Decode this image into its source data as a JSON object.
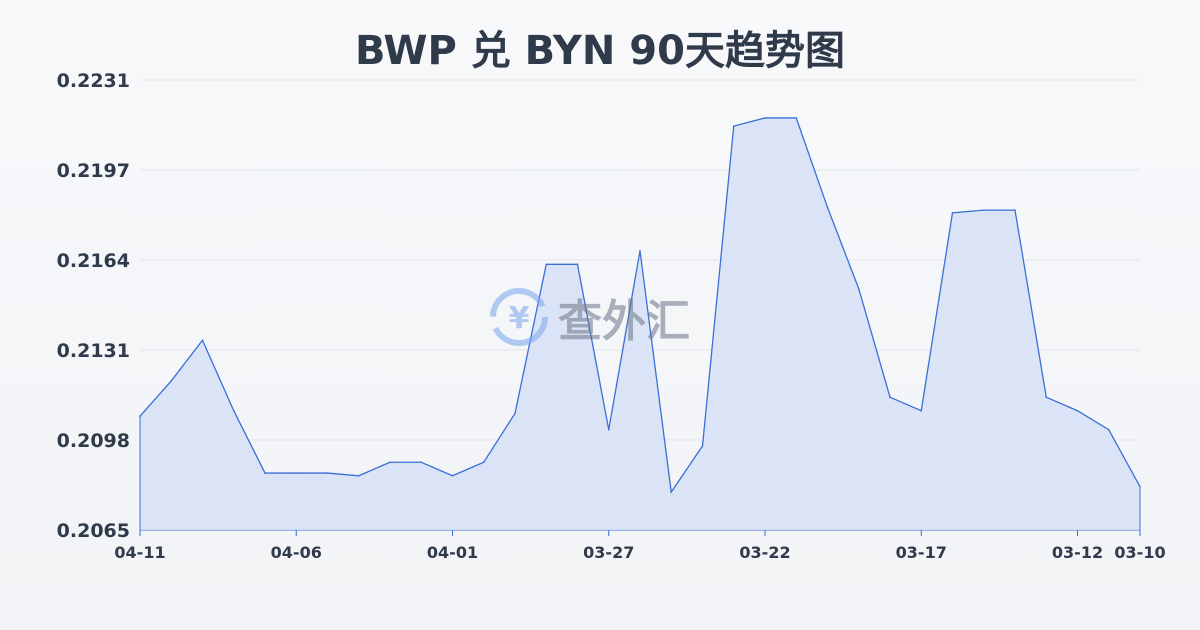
{
  "chart_data": {
    "type": "area",
    "title": "BWP 兑 BYN 90天趋势图",
    "xlabel": "",
    "ylabel": "",
    "ylim": [
      0.2065,
      0.2231
    ],
    "yticks": [
      "0.2231",
      "0.2197",
      "0.2164",
      "0.2131",
      "0.2098",
      "0.2065"
    ],
    "xtick_labels": [
      "04-11",
      "04-06",
      "04-01",
      "03-27",
      "03-22",
      "03-17",
      "03-12",
      "03-10"
    ],
    "x": [
      "04-11",
      "04-10",
      "04-09",
      "04-08",
      "04-07",
      "04-06",
      "04-05",
      "04-04",
      "04-03",
      "04-02",
      "04-01",
      "03-31",
      "03-30",
      "03-29",
      "03-28",
      "03-27",
      "03-26",
      "03-25",
      "03-24",
      "03-23",
      "03-22",
      "03-21",
      "03-20",
      "03-19",
      "03-18",
      "03-17",
      "03-16",
      "03-15",
      "03-14",
      "03-13",
      "03-12",
      "03-11",
      "03-10"
    ],
    "values": [
      0.2107,
      0.212,
      0.2135,
      0.2109,
      0.2086,
      0.2086,
      0.2086,
      0.2085,
      0.209,
      0.209,
      0.2085,
      0.209,
      0.2108,
      0.2163,
      0.2163,
      0.2102,
      0.2168,
      0.2079,
      0.2096,
      0.2214,
      0.2217,
      0.2217,
      0.2184,
      0.2154,
      0.2114,
      0.2109,
      0.2182,
      0.2183,
      0.2183,
      0.2114,
      0.2109,
      0.2102,
      0.2081
    ],
    "grid": true,
    "colors": {
      "line": "#3a6fd8",
      "fill": "#d6e1f6"
    }
  },
  "watermark": {
    "text": "查外汇",
    "icon": "yen-exchange-icon"
  }
}
